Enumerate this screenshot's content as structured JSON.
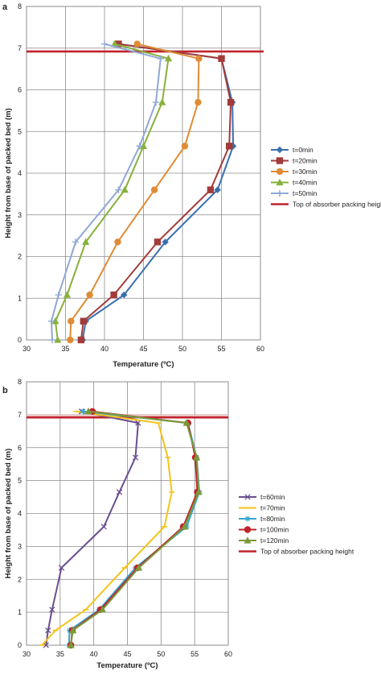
{
  "chart_data": [
    {
      "type": "line",
      "panel_label": "a",
      "xlabel": "Temperature (ºC)",
      "ylabel": "Height from base of packed bed (m)",
      "xlim": [
        30,
        60
      ],
      "ylim": [
        0,
        8
      ],
      "xticks": [
        30,
        35,
        40,
        45,
        50,
        55,
        60
      ],
      "yticks": [
        0,
        1,
        2,
        3,
        4,
        5,
        6,
        7,
        8
      ],
      "grid": true,
      "legend_position": "right",
      "reference_line": {
        "name": "Top of absorber packing height",
        "y": 6.92,
        "color": "#c0232b"
      },
      "series": [
        {
          "name": "t=0min",
          "color": "#3a6fb0",
          "marker": "diamond",
          "x": [
            37.2,
            37.6,
            42.5,
            47.8,
            54.5,
            56.5,
            56.4,
            55.0,
            41.8
          ],
          "y": [
            0,
            0.45,
            1.08,
            2.35,
            3.6,
            4.65,
            5.7,
            6.75,
            7.1
          ]
        },
        {
          "name": "t=20min",
          "color": "#a23b3a",
          "marker": "square",
          "x": [
            37.0,
            37.3,
            41.2,
            46.8,
            53.6,
            56.0,
            56.2,
            55.0,
            41.8
          ],
          "y": [
            0,
            0.45,
            1.08,
            2.35,
            3.6,
            4.65,
            5.7,
            6.75,
            7.1
          ]
        },
        {
          "name": "t=30min",
          "color": "#e08b36",
          "marker": "circle",
          "x": [
            35.6,
            35.7,
            38.1,
            41.7,
            46.4,
            50.3,
            52.0,
            52.1,
            44.2
          ],
          "y": [
            0,
            0.45,
            1.08,
            2.35,
            3.6,
            4.65,
            5.7,
            6.75,
            7.1
          ]
        },
        {
          "name": "t=40min",
          "color": "#87b03c",
          "marker": "triangle",
          "x": [
            34.0,
            33.7,
            35.2,
            37.6,
            42.6,
            45.0,
            47.4,
            48.2,
            41.3
          ],
          "y": [
            0,
            0.45,
            1.08,
            2.35,
            3.6,
            4.65,
            5.7,
            6.75,
            7.1
          ]
        },
        {
          "name": "t=50min",
          "color": "#8fa8d6",
          "marker": "plus",
          "x": [
            33.3,
            33.2,
            34.1,
            36.3,
            41.8,
            44.5,
            46.6,
            47.2,
            40.0
          ],
          "y": [
            0,
            0.45,
            1.08,
            2.35,
            3.6,
            4.65,
            5.7,
            6.75,
            7.1
          ]
        }
      ]
    },
    {
      "type": "line",
      "panel_label": "b",
      "xlabel": "Temperature (ºC)",
      "ylabel": "Height from base of packed bed (m)",
      "xlim": [
        30,
        60
      ],
      "ylim": [
        0,
        8
      ],
      "xticks": [
        30,
        35,
        40,
        45,
        50,
        55,
        60
      ],
      "yticks": [
        0,
        1,
        2,
        3,
        4,
        5,
        6,
        7,
        8
      ],
      "grid": true,
      "legend_position": "right",
      "reference_line": {
        "name": "Top of absorber packing height",
        "y": 6.92,
        "color": "#c0232b"
      },
      "series": [
        {
          "name": "t=60min",
          "color": "#6b4d8f",
          "marker": "x",
          "x": [
            32.9,
            33.2,
            33.8,
            35.2,
            41.5,
            43.8,
            46.2,
            46.6,
            38.2
          ],
          "y": [
            0,
            0.45,
            1.08,
            2.35,
            3.6,
            4.65,
            5.7,
            6.75,
            7.1
          ]
        },
        {
          "name": "t=70min",
          "color": "#f2c31a",
          "marker": "line",
          "x": [
            32.3,
            34.3,
            38.8,
            44.6,
            50.5,
            51.6,
            51.0,
            49.6,
            37.4
          ],
          "y": [
            0,
            0.45,
            1.08,
            2.35,
            3.6,
            4.65,
            5.7,
            6.75,
            7.1
          ]
        },
        {
          "name": "t=80min",
          "color": "#36a6cf",
          "marker": "star",
          "x": [
            36.3,
            36.4,
            40.8,
            46.2,
            53.8,
            55.7,
            55.3,
            54.0,
            38.4
          ],
          "y": [
            0,
            0.45,
            1.08,
            2.35,
            3.6,
            4.65,
            5.7,
            6.75,
            7.1
          ]
        },
        {
          "name": "t=100min",
          "color": "#c0232b",
          "marker": "circle",
          "x": [
            36.6,
            36.8,
            41.0,
            46.5,
            53.3,
            55.4,
            55.1,
            54.0,
            39.8
          ],
          "y": [
            0,
            0.45,
            1.08,
            2.35,
            3.6,
            4.65,
            5.7,
            6.75,
            7.1
          ]
        },
        {
          "name": "t=120min",
          "color": "#7a9a3a",
          "marker": "triangle",
          "x": [
            36.6,
            36.9,
            41.3,
            46.7,
            53.5,
            55.6,
            55.3,
            53.8,
            39.2
          ],
          "y": [
            0,
            0.45,
            1.08,
            2.35,
            3.6,
            4.65,
            5.7,
            6.75,
            7.1
          ]
        }
      ]
    }
  ]
}
